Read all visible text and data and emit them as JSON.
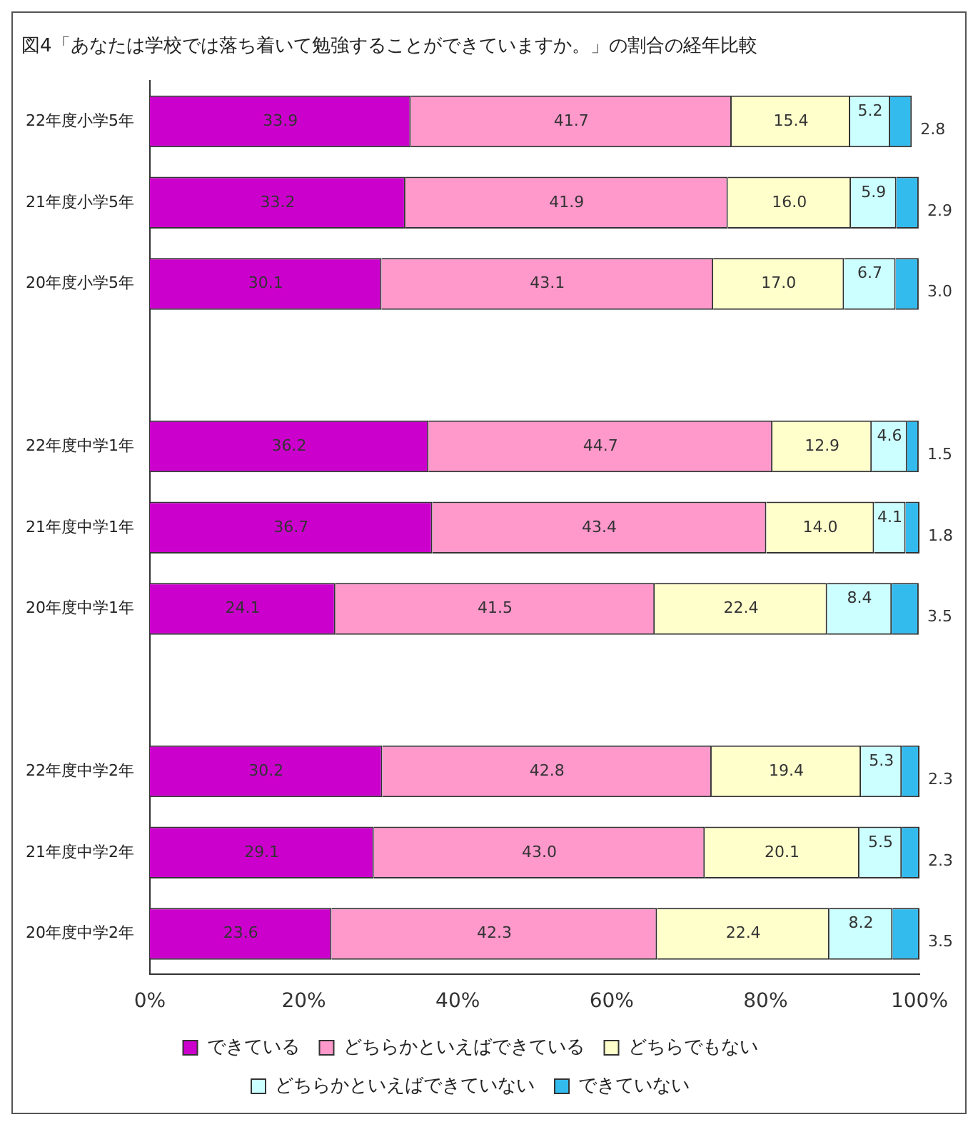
{
  "chart_data": {
    "type": "bar",
    "orientation": "horizontal",
    "stacked": true,
    "title": "図4「あなたは学校では落ち着いて勉強することができていますか。」の割合の経年比較",
    "categories": [
      "22年度小学5年",
      "21年度小学5年",
      "20年度小学5年",
      null,
      "22年度中学1年",
      "21年度中学1年",
      "20年度中学1年",
      null,
      "22年度中学2年",
      "21年度中学2年",
      "20年度中学2年"
    ],
    "series": [
      {
        "name": "できている",
        "color": "#cc00cc",
        "values": [
          33.9,
          33.2,
          30.1,
          null,
          36.2,
          36.7,
          24.1,
          null,
          30.2,
          29.1,
          23.6
        ],
        "value_labels": [
          "33.9",
          "33.2",
          "30.1",
          null,
          "36.2",
          "36.7",
          "24.1",
          null,
          "30.2",
          "29.1",
          "23.6"
        ]
      },
      {
        "name": "どちらかといえばできている",
        "color": "#ff99cc",
        "values": [
          41.7,
          41.9,
          43.1,
          null,
          44.7,
          43.4,
          41.5,
          null,
          42.8,
          43.0,
          42.3
        ],
        "value_labels": [
          "41.7",
          "41.9",
          "43.1",
          null,
          "44.7",
          "43.4",
          "41.5",
          null,
          "42.8",
          "43.0",
          "42.3"
        ]
      },
      {
        "name": "どちらでもない",
        "color": "#ffffcc",
        "values": [
          15.4,
          16.0,
          17.0,
          null,
          12.9,
          14.0,
          22.4,
          null,
          19.4,
          20.1,
          22.4
        ],
        "value_labels": [
          "15.4",
          "16.0",
          "17.0",
          null,
          "12.9",
          "14.0",
          "22.4",
          null,
          "19.4",
          "20.1",
          "22.4"
        ]
      },
      {
        "name": "どちらかといえばできていない",
        "color": "#ccffff",
        "values": [
          5.2,
          5.9,
          6.7,
          null,
          4.6,
          4.1,
          8.4,
          null,
          5.3,
          5.5,
          8.2
        ],
        "value_labels": [
          "5.2",
          "5.9",
          "6.7",
          null,
          "4.6",
          "4.1",
          "8.4",
          null,
          "5.3",
          "5.5",
          "8.2"
        ]
      },
      {
        "name": "できていない",
        "color": "#33bbee",
        "values": [
          2.8,
          2.9,
          3.0,
          null,
          1.5,
          1.8,
          3.5,
          null,
          2.3,
          2.3,
          3.5
        ],
        "value_labels": [
          "2.8",
          "2.9",
          "3.0",
          null,
          "1.5",
          "1.8",
          "3.5",
          null,
          "2.3",
          "2.3",
          "3.5"
        ]
      }
    ],
    "xlim": [
      0,
      100
    ],
    "xticks": [
      {
        "value": 0,
        "label": "0%"
      },
      {
        "value": 20,
        "label": "20%"
      },
      {
        "value": 40,
        "label": "40%"
      },
      {
        "value": 60,
        "label": "60%"
      },
      {
        "value": 80,
        "label": "80%"
      },
      {
        "value": 100,
        "label": "100%"
      }
    ],
    "grid": false,
    "legend": "bottom"
  }
}
